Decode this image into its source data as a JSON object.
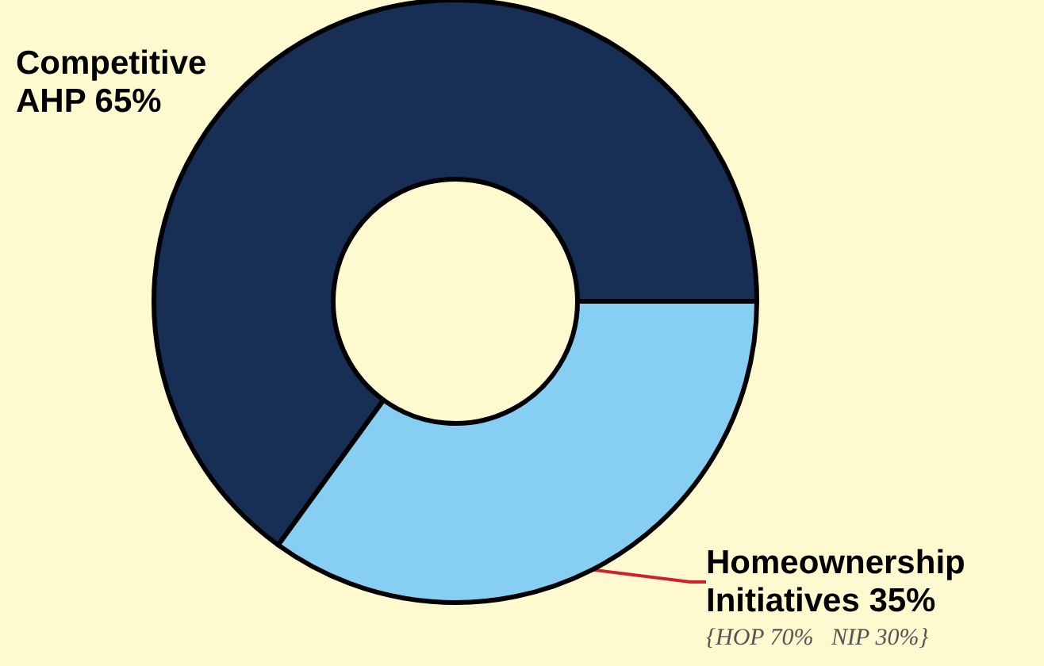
{
  "chart_data": {
    "type": "donut",
    "categories": [
      "Competitive AHP",
      "Homeownership Initiatives"
    ],
    "values": [
      65,
      35
    ],
    "value_labels": [
      "65%",
      "35%"
    ],
    "colors": [
      "#172f55",
      "#87cef3"
    ],
    "legend": false,
    "annotations": [
      "{HOP 70%   NIP 30%}"
    ]
  }
}
